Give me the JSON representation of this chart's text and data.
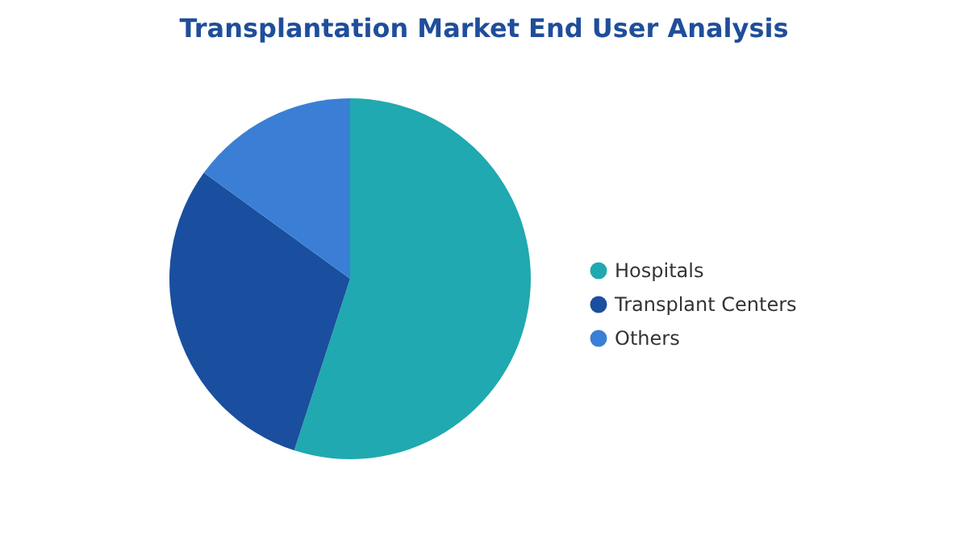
{
  "chart_data": {
    "type": "pie",
    "title": "Transplantation Market End User Analysis",
    "categories": [
      "Hospitals",
      "Transplant Centers",
      "Others"
    ],
    "values": [
      55,
      30,
      15
    ],
    "colors": [
      "#20a9b0",
      "#1a4f9f",
      "#3a7fd5"
    ],
    "legend": "right"
  }
}
